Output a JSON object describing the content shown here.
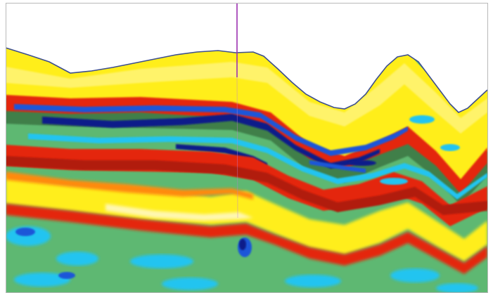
{
  "image": {
    "kind": "seismic-section-image",
    "colors": {
      "background": "#ffffff",
      "border": "#b9b9b9",
      "top_outline": "#3d4f8f",
      "well_line": "#9b2fb0",
      "yellow": "#ffee1a",
      "pale_yellow": "#fff36b",
      "orange": "#ff8a10",
      "red": "#e4260f",
      "dark_red": "#b11a10",
      "green": "#5eb872",
      "dark_green": "#3f7f4a",
      "cyan": "#22c4f0",
      "blue": "#1b57d8",
      "navy": "#0d1f8a"
    }
  }
}
